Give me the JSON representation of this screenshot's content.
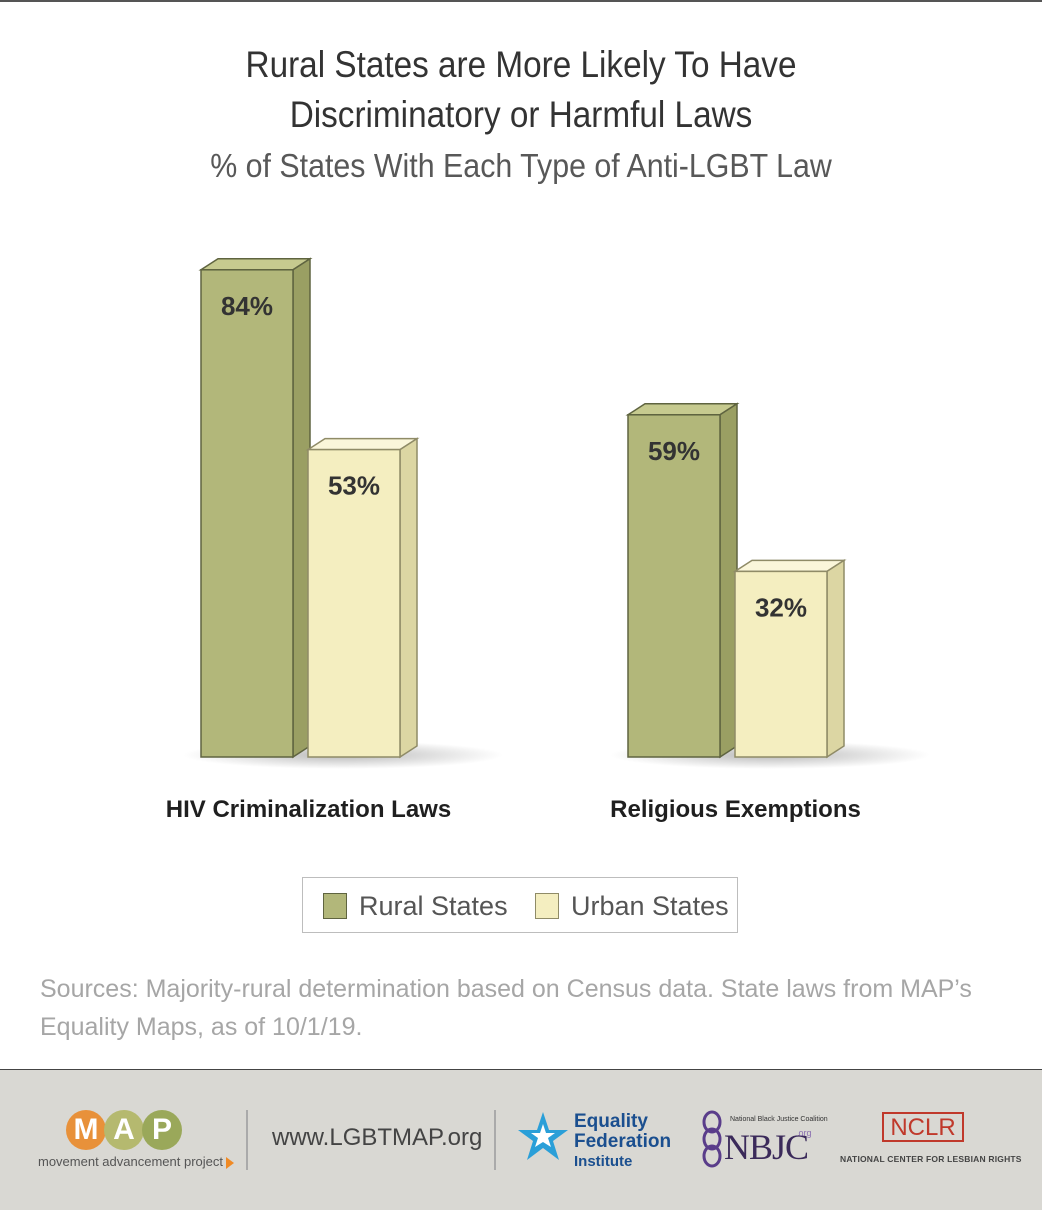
{
  "chart_data": {
    "type": "bar",
    "title": "Rural States are More Likely To Have Discriminatory or Harmful Laws",
    "title_lines": [
      "Rural States are More Likely To Have",
      "Discriminatory or Harmful Laws"
    ],
    "subtitle": "% of States With Each Type of Anti-LGBT Law",
    "categories": [
      "HIV Criminalization Laws",
      "Religious Exemptions"
    ],
    "series": [
      {
        "name": "Rural States",
        "values": [
          84,
          59
        ],
        "labels": [
          "84%",
          "59%"
        ],
        "color": "#b2b77a"
      },
      {
        "name": "Urban States",
        "values": [
          53,
          32
        ],
        "labels": [
          "53%",
          "32%"
        ],
        "color": "#f4eec0"
      }
    ],
    "ylim": [
      0,
      100
    ],
    "grid": false,
    "legend_position": "bottom"
  },
  "sources": "Sources: Majority-rural determination based on Census data. State laws from MAP’s Equality Maps, as of 10/1/19.",
  "footer": {
    "map_letters": [
      "M",
      "A",
      "P"
    ],
    "map_tagline": "movement advancement project",
    "url": "www.LGBTMAP.org",
    "efi_lines": [
      "Equality",
      "Federation",
      "Institute"
    ],
    "nbjc_small": "National Black Justice Coalition",
    "nbjc_big": "NBJC",
    "nbjc_org": ".org",
    "nclr_logo": "NCLR",
    "nclr_name": "NATIONAL CENTER FOR LESBIAN RIGHTS"
  }
}
